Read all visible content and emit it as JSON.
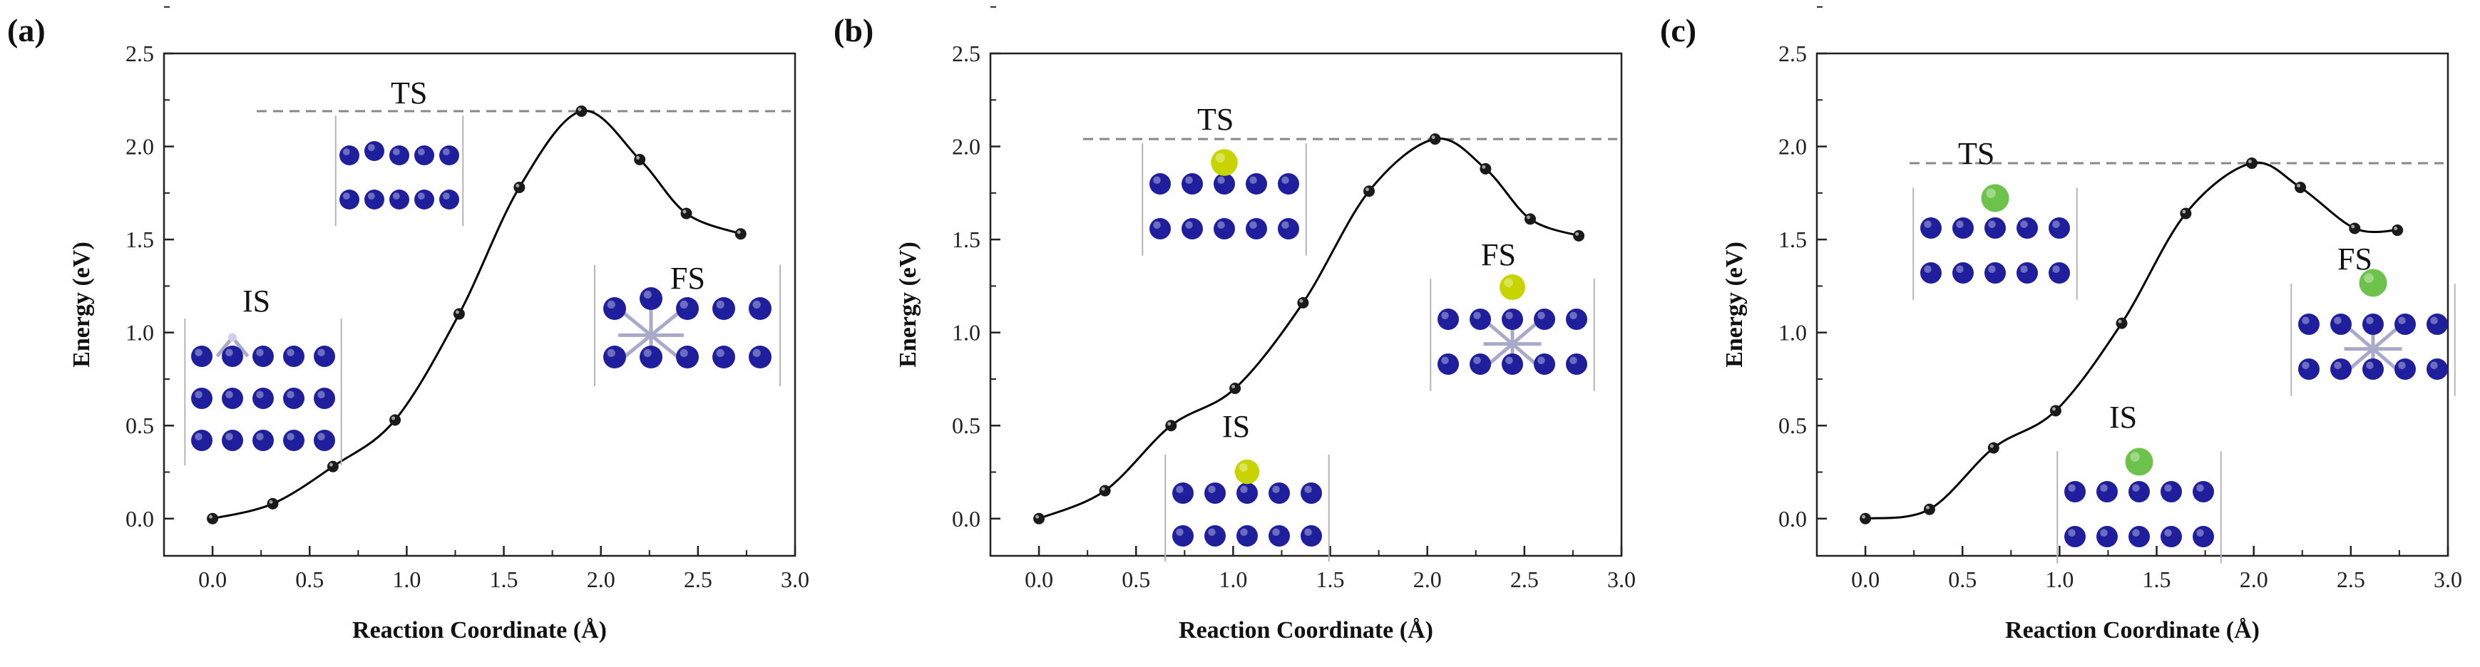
{
  "figure": {
    "y_label": "Energy (eV)",
    "x_label": "Reaction Coordinate (Å)"
  },
  "colors": {
    "curve": "#000000",
    "marker": "#1a1a1a",
    "dashed": "#888888",
    "atom_blue": "#1f1f9e",
    "bond": "#a9a9c9",
    "atom_yellow": "#c8d400",
    "atom_green": "#6cc24a"
  },
  "chart_data": [
    {
      "type": "line",
      "panel": "(a)",
      "title": "",
      "xlabel": "Reaction Coordinate (Å)",
      "ylabel": "Energy (eV)",
      "xlim": [
        -0.25,
        3.0
      ],
      "ylim": [
        -0.2,
        2.5
      ],
      "xticks": [
        "0.0",
        "0.5",
        "1.0",
        "1.5",
        "2.0",
        "2.5",
        "3.0"
      ],
      "yticks": [
        "0.0",
        "0.5",
        "1.0",
        "1.5",
        "2.0",
        "2.5"
      ],
      "x": [
        0.0,
        0.31,
        0.62,
        0.94,
        1.27,
        1.58,
        1.9,
        2.2,
        2.44,
        2.72
      ],
      "y": [
        0.0,
        0.08,
        0.28,
        0.53,
        1.1,
        1.78,
        2.19,
        1.93,
        1.64,
        1.53
      ],
      "ts_energy": 2.19,
      "labels": {
        "ts": "TS",
        "is": "IS",
        "fs": "FS"
      },
      "adsorbate": "none"
    },
    {
      "type": "line",
      "panel": "(b)",
      "title": "",
      "xlabel": "Reaction Coordinate (Å)",
      "ylabel": "Energy (eV)",
      "xlim": [
        -0.25,
        3.0
      ],
      "ylim": [
        -0.2,
        2.5
      ],
      "xticks": [
        "0.0",
        "0.5",
        "1.0",
        "1.5",
        "2.0",
        "2.5",
        "3.0"
      ],
      "yticks": [
        "0.0",
        "0.5",
        "1.0",
        "1.5",
        "2.0",
        "2.5"
      ],
      "x": [
        0.0,
        0.34,
        0.68,
        1.01,
        1.36,
        1.7,
        2.04,
        2.3,
        2.53,
        2.78
      ],
      "y": [
        0.0,
        0.15,
        0.5,
        0.7,
        1.16,
        1.76,
        2.04,
        1.88,
        1.61,
        1.52
      ],
      "ts_energy": 2.04,
      "labels": {
        "ts": "TS",
        "is": "IS",
        "fs": "FS"
      },
      "adsorbate": "yellow"
    },
    {
      "type": "line",
      "panel": "(c)",
      "title": "",
      "xlabel": "Reaction Coordinate (Å)",
      "ylabel": "Energy (eV)",
      "xlim": [
        -0.25,
        3.0
      ],
      "ylim": [
        -0.2,
        2.5
      ],
      "xticks": [
        "0.0",
        "0.5",
        "1.0",
        "1.5",
        "2.0",
        "2.5",
        "3.0"
      ],
      "yticks": [
        "0.0",
        "0.5",
        "1.0",
        "1.5",
        "2.0",
        "2.5"
      ],
      "x": [
        0.0,
        0.33,
        0.66,
        0.98,
        1.32,
        1.65,
        1.99,
        2.24,
        2.52,
        2.74
      ],
      "y": [
        0.0,
        0.05,
        0.38,
        0.58,
        1.05,
        1.64,
        1.91,
        1.78,
        1.56,
        1.55
      ],
      "ts_energy": 1.91,
      "labels": {
        "ts": "TS",
        "is": "IS",
        "fs": "FS"
      },
      "adsorbate": "green"
    }
  ]
}
